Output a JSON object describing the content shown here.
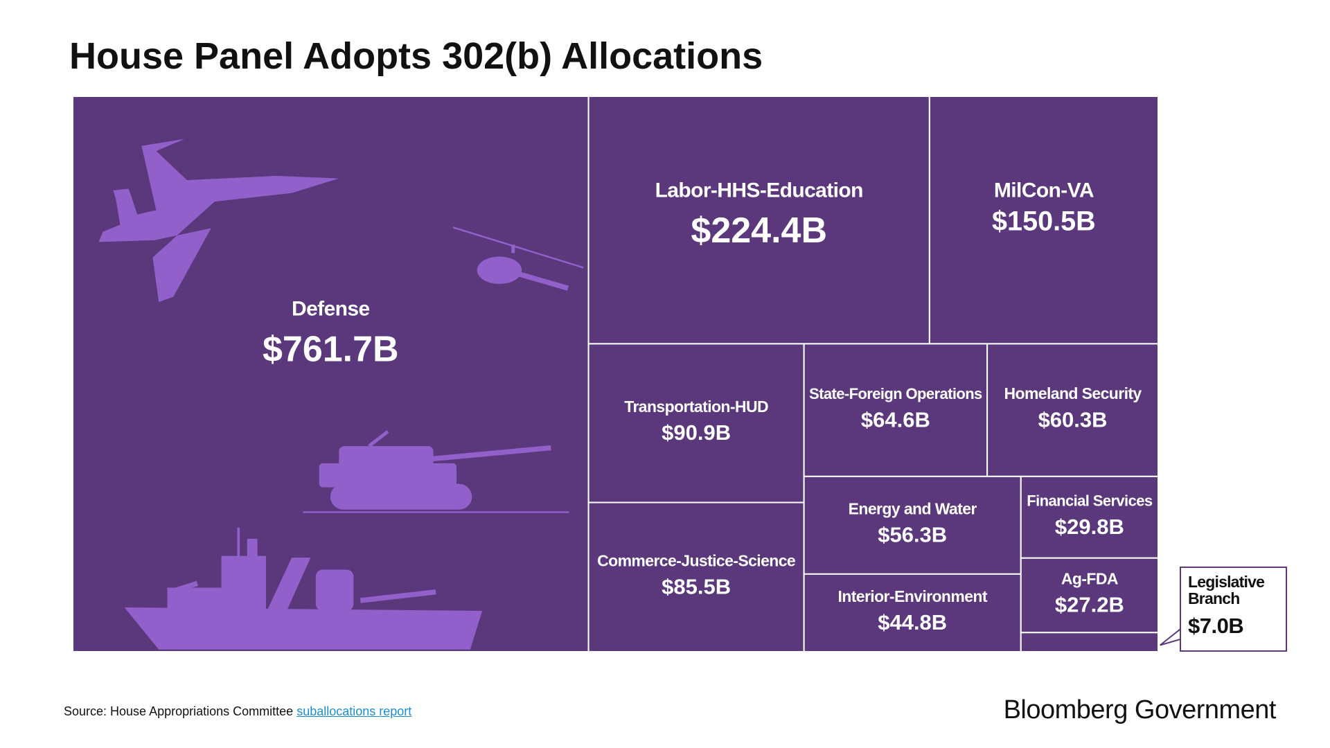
{
  "chart_data": {
    "type": "treemap",
    "title": "House Panel Adopts 302(b) Allocations",
    "categories": [
      "Defense",
      "Labor-HHS-Education",
      "MilCon-VA",
      "Transportation-HUD",
      "Commerce-Justice-Science",
      "State-Foreign Operations",
      "Homeland Security",
      "Energy and Water",
      "Interior-Environment",
      "Financial Services",
      "Ag-FDA",
      "Legislative Branch"
    ],
    "values": [
      761.7,
      224.4,
      150.5,
      90.9,
      85.5,
      64.6,
      60.3,
      56.3,
      44.8,
      29.8,
      27.2,
      7.0
    ],
    "value_labels": [
      "$761.7B",
      "$224.4B",
      "$150.5B",
      "$90.9B",
      "$85.5B",
      "$64.6B",
      "$60.3B",
      "$56.3B",
      "$44.8B",
      "$29.8B",
      "$27.2B",
      "$7.0B"
    ],
    "color": "#5b387c",
    "source": {
      "text": "Source: House Appropriations Committee",
      "link": "suballocations report"
    },
    "brand": "Bloomberg Government"
  }
}
